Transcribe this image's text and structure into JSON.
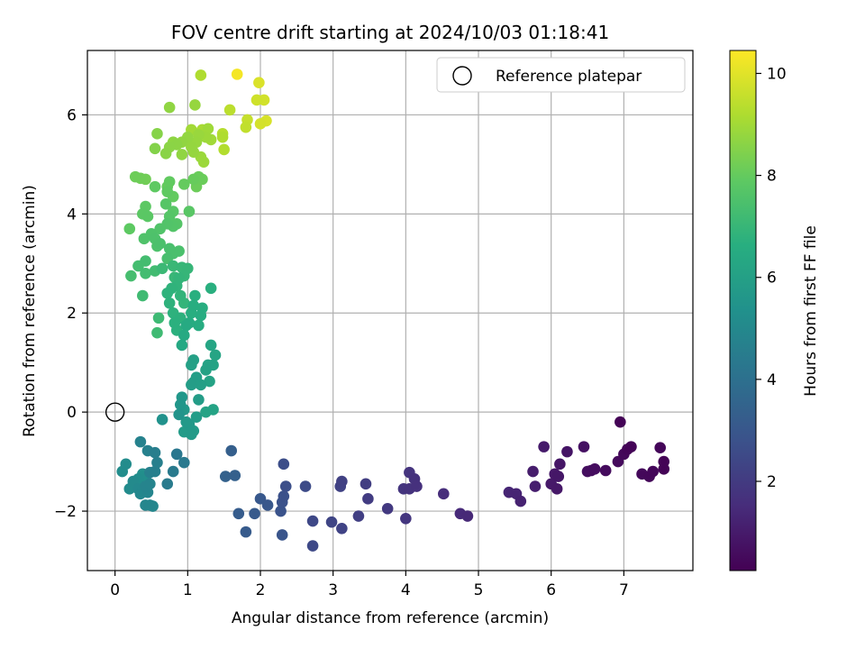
{
  "chart_data": {
    "type": "scatter",
    "title": "FOV centre drift starting at 2024/10/03 01:18:41",
    "xlabel": "Angular distance from reference (arcmin)",
    "ylabel": "Rotation from reference (arcmin)",
    "xlim": [
      -0.38,
      7.95
    ],
    "ylim": [
      -3.2,
      7.3
    ],
    "x_ticks": [
      0,
      1,
      2,
      3,
      4,
      5,
      6,
      7
    ],
    "y_ticks": [
      -2,
      0,
      2,
      4,
      6
    ],
    "grid": true,
    "legend": {
      "placement": "top-right",
      "entries": [
        "Reference platepar"
      ]
    },
    "reference_point": {
      "x": 0,
      "y": 0
    },
    "colorbar": {
      "label": "Hours from first FF file",
      "range": [
        0.25,
        10.45
      ],
      "ticks": [
        2,
        4,
        6,
        8,
        10
      ],
      "colormap": "viridis"
    },
    "points": [
      {
        "x": 6.95,
        "y": -0.2,
        "c": 0.3
      },
      {
        "x": 7.5,
        "y": -0.72,
        "c": 0.4
      },
      {
        "x": 7.1,
        "y": -0.7,
        "c": 0.35
      },
      {
        "x": 7.05,
        "y": -0.75,
        "c": 0.38
      },
      {
        "x": 7.0,
        "y": -0.85,
        "c": 0.45
      },
      {
        "x": 6.92,
        "y": -1.0,
        "c": 0.5
      },
      {
        "x": 7.55,
        "y": -1.0,
        "c": 0.3
      },
      {
        "x": 7.55,
        "y": -1.15,
        "c": 0.32
      },
      {
        "x": 7.4,
        "y": -1.2,
        "c": 0.4
      },
      {
        "x": 7.25,
        "y": -1.25,
        "c": 0.45
      },
      {
        "x": 7.35,
        "y": -1.3,
        "c": 0.42
      },
      {
        "x": 6.75,
        "y": -1.18,
        "c": 0.55
      },
      {
        "x": 6.6,
        "y": -1.15,
        "c": 0.6
      },
      {
        "x": 6.5,
        "y": -1.2,
        "c": 0.65
      },
      {
        "x": 6.55,
        "y": -1.18,
        "c": 0.62
      },
      {
        "x": 6.45,
        "y": -0.7,
        "c": 0.7
      },
      {
        "x": 6.22,
        "y": -0.8,
        "c": 0.8
      },
      {
        "x": 6.12,
        "y": -1.05,
        "c": 0.85
      },
      {
        "x": 6.05,
        "y": -1.25,
        "c": 0.9
      },
      {
        "x": 6.1,
        "y": -1.3,
        "c": 0.88
      },
      {
        "x": 6.0,
        "y": -1.45,
        "c": 0.95
      },
      {
        "x": 6.08,
        "y": -1.55,
        "c": 0.92
      },
      {
        "x": 5.9,
        "y": -0.7,
        "c": 1.0
      },
      {
        "x": 5.75,
        "y": -1.2,
        "c": 1.05
      },
      {
        "x": 5.78,
        "y": -1.5,
        "c": 1.1
      },
      {
        "x": 5.58,
        "y": -1.8,
        "c": 1.2
      },
      {
        "x": 5.52,
        "y": -1.65,
        "c": 1.25
      },
      {
        "x": 5.42,
        "y": -1.62,
        "c": 1.3
      },
      {
        "x": 4.85,
        "y": -2.1,
        "c": 1.4
      },
      {
        "x": 4.75,
        "y": -2.05,
        "c": 1.45
      },
      {
        "x": 4.52,
        "y": -1.65,
        "c": 1.55
      },
      {
        "x": 4.15,
        "y": -1.5,
        "c": 1.65
      },
      {
        "x": 4.12,
        "y": -1.35,
        "c": 1.7
      },
      {
        "x": 4.05,
        "y": -1.22,
        "c": 1.75
      },
      {
        "x": 4.05,
        "y": -1.55,
        "c": 1.72
      },
      {
        "x": 3.97,
        "y": -1.55,
        "c": 1.8
      },
      {
        "x": 4.0,
        "y": -2.15,
        "c": 1.85
      },
      {
        "x": 3.75,
        "y": -1.95,
        "c": 1.95
      },
      {
        "x": 3.48,
        "y": -1.75,
        "c": 2.05
      },
      {
        "x": 3.45,
        "y": -1.45,
        "c": 2.1
      },
      {
        "x": 3.35,
        "y": -2.1,
        "c": 2.15
      },
      {
        "x": 3.12,
        "y": -1.4,
        "c": 2.2
      },
      {
        "x": 3.1,
        "y": -1.5,
        "c": 2.25
      },
      {
        "x": 3.12,
        "y": -2.35,
        "c": 2.3
      },
      {
        "x": 2.98,
        "y": -2.22,
        "c": 2.35
      },
      {
        "x": 2.72,
        "y": -2.2,
        "c": 2.45
      },
      {
        "x": 2.72,
        "y": -2.7,
        "c": 2.5
      },
      {
        "x": 2.62,
        "y": -1.5,
        "c": 2.55
      },
      {
        "x": 2.32,
        "y": -1.05,
        "c": 2.65
      },
      {
        "x": 2.35,
        "y": -1.5,
        "c": 2.7
      },
      {
        "x": 2.32,
        "y": -1.7,
        "c": 2.75
      },
      {
        "x": 2.3,
        "y": -1.82,
        "c": 2.8
      },
      {
        "x": 2.28,
        "y": -2.0,
        "c": 2.85
      },
      {
        "x": 2.3,
        "y": -2.48,
        "c": 2.9
      },
      {
        "x": 2.1,
        "y": -1.88,
        "c": 3.0
      },
      {
        "x": 2.0,
        "y": -1.75,
        "c": 3.05
      },
      {
        "x": 1.92,
        "y": -2.05,
        "c": 3.1
      },
      {
        "x": 1.8,
        "y": -2.42,
        "c": 3.15
      },
      {
        "x": 1.7,
        "y": -2.05,
        "c": 3.2
      },
      {
        "x": 1.6,
        "y": -0.78,
        "c": 3.3
      },
      {
        "x": 1.65,
        "y": -1.28,
        "c": 3.35
      },
      {
        "x": 1.52,
        "y": -1.3,
        "c": 3.4
      },
      {
        "x": 0.85,
        "y": -0.85,
        "c": 4.3
      },
      {
        "x": 0.95,
        "y": -1.02,
        "c": 4.35
      },
      {
        "x": 0.8,
        "y": -1.2,
        "c": 4.4
      },
      {
        "x": 0.72,
        "y": -1.45,
        "c": 4.45
      },
      {
        "x": 0.55,
        "y": -0.82,
        "c": 4.55
      },
      {
        "x": 0.58,
        "y": -1.02,
        "c": 4.6
      },
      {
        "x": 0.55,
        "y": -1.2,
        "c": 4.62
      },
      {
        "x": 0.48,
        "y": -1.22,
        "c": 4.65
      },
      {
        "x": 0.45,
        "y": -0.78,
        "c": 4.7
      },
      {
        "x": 0.35,
        "y": -0.6,
        "c": 4.75
      },
      {
        "x": 0.48,
        "y": -1.45,
        "c": 4.8
      },
      {
        "x": 0.42,
        "y": -1.5,
        "c": 4.82
      },
      {
        "x": 0.45,
        "y": -1.62,
        "c": 4.85
      },
      {
        "x": 0.48,
        "y": -1.88,
        "c": 4.9
      },
      {
        "x": 0.42,
        "y": -1.88,
        "c": 4.88
      },
      {
        "x": 0.52,
        "y": -1.9,
        "c": 4.92
      },
      {
        "x": 0.35,
        "y": -1.65,
        "c": 4.95
      },
      {
        "x": 0.32,
        "y": -1.55,
        "c": 5.0
      },
      {
        "x": 0.25,
        "y": -1.4,
        "c": 5.05
      },
      {
        "x": 0.2,
        "y": -1.55,
        "c": 5.1
      },
      {
        "x": 0.15,
        "y": -1.05,
        "c": 5.15
      },
      {
        "x": 0.1,
        "y": -1.2,
        "c": 5.18
      },
      {
        "x": 0.32,
        "y": -1.35,
        "c": 5.2
      },
      {
        "x": 0.42,
        "y": -1.35,
        "c": 5.22
      },
      {
        "x": 0.38,
        "y": -1.25,
        "c": 5.25
      },
      {
        "x": 0.65,
        "y": -0.15,
        "c": 5.4
      },
      {
        "x": 0.88,
        "y": -0.05,
        "c": 5.5
      },
      {
        "x": 0.9,
        "y": 0.15,
        "c": 5.55
      },
      {
        "x": 0.92,
        "y": 0.3,
        "c": 5.6
      },
      {
        "x": 0.95,
        "y": 0.05,
        "c": 5.65
      },
      {
        "x": 0.98,
        "y": -0.2,
        "c": 5.7
      },
      {
        "x": 1.02,
        "y": -0.25,
        "c": 5.72
      },
      {
        "x": 1.05,
        "y": -0.45,
        "c": 5.75
      },
      {
        "x": 1.08,
        "y": -0.38,
        "c": 5.78
      },
      {
        "x": 0.95,
        "y": -0.4,
        "c": 5.8
      },
      {
        "x": 1.12,
        "y": -0.1,
        "c": 5.82
      },
      {
        "x": 1.15,
        "y": 0.25,
        "c": 5.85
      },
      {
        "x": 1.05,
        "y": 0.55,
        "c": 5.88
      },
      {
        "x": 1.08,
        "y": 0.6,
        "c": 5.9
      },
      {
        "x": 1.12,
        "y": 0.7,
        "c": 5.92
      },
      {
        "x": 1.18,
        "y": 0.55,
        "c": 5.95
      },
      {
        "x": 1.05,
        "y": 0.95,
        "c": 6.0
      },
      {
        "x": 1.08,
        "y": 1.05,
        "c": 6.02
      },
      {
        "x": 1.25,
        "y": 0.85,
        "c": 6.05
      },
      {
        "x": 1.28,
        "y": 0.95,
        "c": 6.08
      },
      {
        "x": 1.3,
        "y": 0.62,
        "c": 6.1
      },
      {
        "x": 1.35,
        "y": 0.05,
        "c": 6.12
      },
      {
        "x": 1.25,
        "y": 0.0,
        "c": 6.14
      },
      {
        "x": 1.35,
        "y": 0.95,
        "c": 6.16
      },
      {
        "x": 1.38,
        "y": 1.15,
        "c": 6.2
      },
      {
        "x": 1.32,
        "y": 1.35,
        "c": 6.25
      },
      {
        "x": 0.92,
        "y": 1.35,
        "c": 6.35
      },
      {
        "x": 0.95,
        "y": 1.55,
        "c": 6.4
      },
      {
        "x": 0.98,
        "y": 1.75,
        "c": 6.45
      },
      {
        "x": 1.02,
        "y": 1.8,
        "c": 6.5
      },
      {
        "x": 1.15,
        "y": 1.75,
        "c": 6.52
      },
      {
        "x": 1.18,
        "y": 1.95,
        "c": 6.55
      },
      {
        "x": 1.2,
        "y": 2.1,
        "c": 6.58
      },
      {
        "x": 1.08,
        "y": 2.15,
        "c": 6.6
      },
      {
        "x": 1.05,
        "y": 2.0,
        "c": 6.62
      },
      {
        "x": 1.1,
        "y": 2.35,
        "c": 6.65
      },
      {
        "x": 1.32,
        "y": 2.5,
        "c": 6.68
      },
      {
        "x": 0.82,
        "y": 1.8,
        "c": 6.7
      },
      {
        "x": 0.85,
        "y": 1.65,
        "c": 6.72
      },
      {
        "x": 0.9,
        "y": 1.9,
        "c": 6.74
      },
      {
        "x": 0.8,
        "y": 2.0,
        "c": 6.76
      },
      {
        "x": 0.75,
        "y": 2.2,
        "c": 6.78
      },
      {
        "x": 0.72,
        "y": 2.4,
        "c": 6.8
      },
      {
        "x": 0.78,
        "y": 2.5,
        "c": 6.82
      },
      {
        "x": 0.85,
        "y": 2.55,
        "c": 6.85
      },
      {
        "x": 0.9,
        "y": 2.35,
        "c": 6.88
      },
      {
        "x": 0.95,
        "y": 2.2,
        "c": 6.9
      },
      {
        "x": 0.88,
        "y": 2.7,
        "c": 6.92
      },
      {
        "x": 0.95,
        "y": 2.75,
        "c": 6.95
      },
      {
        "x": 1.0,
        "y": 2.9,
        "c": 6.97
      },
      {
        "x": 0.92,
        "y": 2.92,
        "c": 7.0
      },
      {
        "x": 0.82,
        "y": 2.72,
        "c": 7.02
      },
      {
        "x": 0.8,
        "y": 2.95,
        "c": 7.05
      },
      {
        "x": 0.65,
        "y": 2.9,
        "c": 7.1
      },
      {
        "x": 0.6,
        "y": 1.9,
        "c": 7.15
      },
      {
        "x": 0.58,
        "y": 1.6,
        "c": 7.18
      },
      {
        "x": 0.38,
        "y": 2.35,
        "c": 7.2
      },
      {
        "x": 0.55,
        "y": 2.85,
        "c": 7.25
      },
      {
        "x": 0.42,
        "y": 2.8,
        "c": 7.28
      },
      {
        "x": 0.42,
        "y": 3.05,
        "c": 7.3
      },
      {
        "x": 0.32,
        "y": 2.95,
        "c": 7.32
      },
      {
        "x": 0.22,
        "y": 2.75,
        "c": 7.35
      },
      {
        "x": 0.72,
        "y": 3.1,
        "c": 7.4
      },
      {
        "x": 0.75,
        "y": 3.3,
        "c": 7.42
      },
      {
        "x": 0.8,
        "y": 3.2,
        "c": 7.44
      },
      {
        "x": 0.88,
        "y": 3.25,
        "c": 7.46
      },
      {
        "x": 0.62,
        "y": 3.4,
        "c": 7.48
      },
      {
        "x": 0.58,
        "y": 3.35,
        "c": 7.5
      },
      {
        "x": 0.55,
        "y": 3.5,
        "c": 7.52
      },
      {
        "x": 0.5,
        "y": 3.6,
        "c": 7.55
      },
      {
        "x": 0.4,
        "y": 3.5,
        "c": 7.58
      },
      {
        "x": 0.62,
        "y": 3.7,
        "c": 7.6
      },
      {
        "x": 0.72,
        "y": 3.8,
        "c": 7.62
      },
      {
        "x": 0.8,
        "y": 3.75,
        "c": 7.65
      },
      {
        "x": 0.85,
        "y": 3.8,
        "c": 7.68
      },
      {
        "x": 0.75,
        "y": 3.95,
        "c": 7.7
      },
      {
        "x": 0.7,
        "y": 4.2,
        "c": 7.72
      },
      {
        "x": 0.8,
        "y": 4.05,
        "c": 7.75
      },
      {
        "x": 1.02,
        "y": 4.05,
        "c": 7.78
      },
      {
        "x": 0.45,
        "y": 3.95,
        "c": 7.8
      },
      {
        "x": 0.38,
        "y": 4.0,
        "c": 7.82
      },
      {
        "x": 0.42,
        "y": 4.15,
        "c": 7.85
      },
      {
        "x": 0.2,
        "y": 3.7,
        "c": 7.88
      },
      {
        "x": 0.55,
        "y": 4.55,
        "c": 7.9
      },
      {
        "x": 0.72,
        "y": 4.45,
        "c": 7.92
      },
      {
        "x": 0.75,
        "y": 4.65,
        "c": 7.95
      },
      {
        "x": 0.8,
        "y": 4.35,
        "c": 7.97
      },
      {
        "x": 0.95,
        "y": 4.6,
        "c": 8.0
      },
      {
        "x": 0.72,
        "y": 4.55,
        "c": 8.02
      },
      {
        "x": 1.08,
        "y": 4.7,
        "c": 8.05
      },
      {
        "x": 1.15,
        "y": 4.75,
        "c": 8.08
      },
      {
        "x": 1.2,
        "y": 4.7,
        "c": 8.1
      },
      {
        "x": 1.12,
        "y": 4.55,
        "c": 8.12
      },
      {
        "x": 0.28,
        "y": 4.75,
        "c": 8.15
      },
      {
        "x": 0.35,
        "y": 4.72,
        "c": 8.18
      },
      {
        "x": 0.42,
        "y": 4.7,
        "c": 8.2
      },
      {
        "x": 0.55,
        "y": 5.32,
        "c": 8.5
      },
      {
        "x": 0.58,
        "y": 5.62,
        "c": 8.55
      },
      {
        "x": 0.7,
        "y": 5.22,
        "c": 8.6
      },
      {
        "x": 0.75,
        "y": 5.35,
        "c": 8.62
      },
      {
        "x": 0.85,
        "y": 5.4,
        "c": 8.65
      },
      {
        "x": 0.8,
        "y": 5.45,
        "c": 8.68
      },
      {
        "x": 0.92,
        "y": 5.2,
        "c": 8.7
      },
      {
        "x": 0.92,
        "y": 5.45,
        "c": 8.72
      },
      {
        "x": 1.0,
        "y": 5.55,
        "c": 8.75
      },
      {
        "x": 1.05,
        "y": 5.35,
        "c": 8.78
      },
      {
        "x": 1.08,
        "y": 5.25,
        "c": 8.8
      },
      {
        "x": 1.12,
        "y": 5.45,
        "c": 8.82
      },
      {
        "x": 1.15,
        "y": 5.6,
        "c": 8.85
      },
      {
        "x": 1.18,
        "y": 5.15,
        "c": 8.88
      },
      {
        "x": 1.22,
        "y": 5.05,
        "c": 8.9
      },
      {
        "x": 1.25,
        "y": 5.55,
        "c": 8.92
      },
      {
        "x": 1.28,
        "y": 5.72,
        "c": 8.95
      },
      {
        "x": 1.32,
        "y": 5.5,
        "c": 8.98
      },
      {
        "x": 1.05,
        "y": 5.7,
        "c": 9.0
      },
      {
        "x": 0.75,
        "y": 6.15,
        "c": 8.7
      },
      {
        "x": 1.1,
        "y": 6.2,
        "c": 8.8
      },
      {
        "x": 1.2,
        "y": 5.7,
        "c": 9.1
      },
      {
        "x": 1.48,
        "y": 5.55,
        "c": 9.2
      },
      {
        "x": 1.5,
        "y": 5.3,
        "c": 9.25
      },
      {
        "x": 1.48,
        "y": 5.62,
        "c": 9.3
      },
      {
        "x": 1.58,
        "y": 6.1,
        "c": 9.4
      },
      {
        "x": 1.8,
        "y": 5.75,
        "c": 9.5
      },
      {
        "x": 1.82,
        "y": 5.9,
        "c": 9.55
      },
      {
        "x": 1.95,
        "y": 6.3,
        "c": 9.7
      },
      {
        "x": 2.05,
        "y": 6.3,
        "c": 9.75
      },
      {
        "x": 2.0,
        "y": 5.82,
        "c": 9.8
      },
      {
        "x": 2.08,
        "y": 5.88,
        "c": 9.85
      },
      {
        "x": 1.98,
        "y": 6.65,
        "c": 9.9
      },
      {
        "x": 1.68,
        "y": 6.82,
        "c": 10.3
      },
      {
        "x": 1.18,
        "y": 6.8,
        "c": 9.2
      }
    ]
  }
}
